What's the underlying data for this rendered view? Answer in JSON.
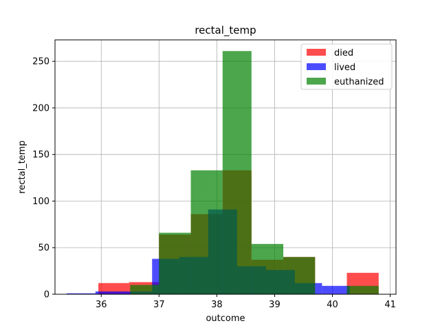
{
  "chart_data": {
    "type": "bar",
    "title": "rectal_temp",
    "xlabel": "outcome",
    "ylabel": "rectal_temp",
    "xlim": [
      35.2,
      41.1
    ],
    "ylim": [
      0,
      273
    ],
    "xticks": [
      36,
      37,
      38,
      39,
      40,
      41
    ],
    "yticks": [
      0,
      50,
      100,
      150,
      200,
      250
    ],
    "grid": true,
    "legend_position": "top-right",
    "series": [
      {
        "name": "died",
        "color": "#ff0000",
        "alpha": 0.7,
        "bins": [
          {
            "x0": 35.95,
            "x1": 36.48,
            "value": 12
          },
          {
            "x0": 36.48,
            "x1": 37.0,
            "value": 13
          },
          {
            "x0": 37.0,
            "x1": 37.55,
            "value": 64
          },
          {
            "x0": 37.55,
            "x1": 38.1,
            "value": 86
          },
          {
            "x0": 38.1,
            "x1": 38.6,
            "value": 133
          },
          {
            "x0": 38.6,
            "x1": 39.15,
            "value": 37
          },
          {
            "x0": 39.15,
            "x1": 39.7,
            "value": 40
          },
          {
            "x0": 39.7,
            "x1": 40.25,
            "value": 0
          },
          {
            "x0": 40.25,
            "x1": 40.8,
            "value": 23
          }
        ]
      },
      {
        "name": "lived",
        "color": "#0000ff",
        "alpha": 0.7,
        "bins": [
          {
            "x0": 35.4,
            "x1": 35.9,
            "value": 1
          },
          {
            "x0": 35.9,
            "x1": 36.4,
            "value": 3
          },
          {
            "x0": 36.4,
            "x1": 36.88,
            "value": 3
          },
          {
            "x0": 36.88,
            "x1": 37.35,
            "value": 38
          },
          {
            "x0": 37.35,
            "x1": 37.85,
            "value": 40
          },
          {
            "x0": 37.85,
            "x1": 38.35,
            "value": 91
          },
          {
            "x0": 38.35,
            "x1": 38.85,
            "value": 30
          },
          {
            "x0": 38.85,
            "x1": 39.35,
            "value": 26
          },
          {
            "x0": 39.35,
            "x1": 39.82,
            "value": 12
          },
          {
            "x0": 39.82,
            "x1": 40.3,
            "value": 9
          }
        ]
      },
      {
        "name": "euthanized",
        "color": "#008000",
        "alpha": 0.7,
        "bins": [
          {
            "x0": 35.4,
            "x1": 36.5,
            "value": 0
          },
          {
            "x0": 36.5,
            "x1": 37.0,
            "value": 10
          },
          {
            "x0": 37.0,
            "x1": 37.55,
            "value": 66
          },
          {
            "x0": 37.55,
            "x1": 38.1,
            "value": 133
          },
          {
            "x0": 38.1,
            "x1": 38.6,
            "value": 261
          },
          {
            "x0": 38.6,
            "x1": 39.15,
            "value": 54
          },
          {
            "x0": 39.15,
            "x1": 39.7,
            "value": 40
          },
          {
            "x0": 39.7,
            "x1": 40.25,
            "value": 0
          },
          {
            "x0": 40.25,
            "x1": 40.8,
            "value": 9
          }
        ]
      }
    ]
  }
}
